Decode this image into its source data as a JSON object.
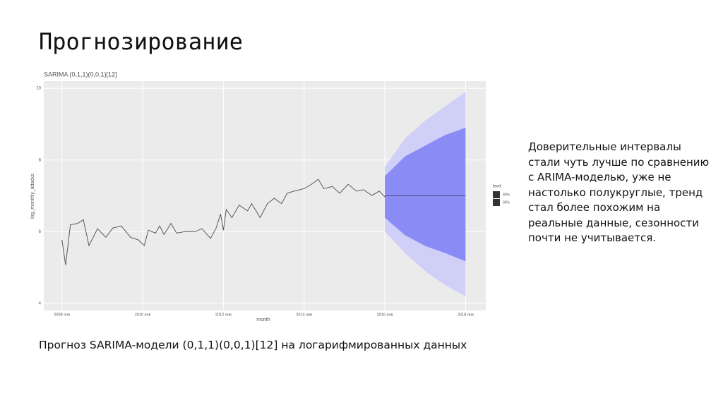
{
  "slide_title": "Прогнозирование",
  "caption": "Прогноз SARIMA-модели (0,1,1)(0,0,1)[12] на логарифмированных данных",
  "description": "Доверительные интервалы стали чуть лучше по сравнению с ARIMA-моделью, уже не настолько полукруглые, тренд стал более похожим на реальные данные, сезонности почти не учитывается.",
  "chart_data": {
    "type": "line",
    "title": "SARIMA (0,1,1)(0,0,1)[12]",
    "x_label": "month",
    "y_label": "log_monthly_attacks",
    "legend_title": "level",
    "xlim": [
      2007.55,
      2018.5
    ],
    "ylim": [
      3.8,
      10.2
    ],
    "xticks": [
      {
        "value": 2008,
        "label": "2008 янв"
      },
      {
        "value": 2010,
        "label": "2010 янв"
      },
      {
        "value": 2012,
        "label": "2012 янв"
      },
      {
        "value": 2014,
        "label": "2014 янв"
      },
      {
        "value": 2016,
        "label": "2016 янв"
      },
      {
        "value": 2018,
        "label": "2018 янв"
      }
    ],
    "yticks": [
      4,
      6,
      8,
      10
    ],
    "grid": true,
    "series": [
      {
        "color": "#595959",
        "x": [
          2008.0,
          2008.09,
          2008.21,
          2008.39,
          2008.53,
          2008.67,
          2008.88,
          2009.09,
          2009.26,
          2009.47,
          2009.7,
          2009.89,
          2010.04,
          2010.14,
          2010.32,
          2010.42,
          2010.53,
          2010.7,
          2010.84,
          2011.05,
          2011.3,
          2011.47,
          2011.68,
          2011.82,
          2011.93,
          2012.0,
          2012.07,
          2012.21,
          2012.39,
          2012.6,
          2012.7,
          2012.91,
          2013.09,
          2013.26,
          2013.44,
          2013.58,
          2013.75,
          2014.0,
          2014.18,
          2014.35,
          2014.49,
          2014.7,
          2014.88,
          2015.09,
          2015.3,
          2015.47,
          2015.68,
          2015.86,
          2016.0,
          2016.19,
          2016.44,
          2016.65,
          2016.89,
          2017.14,
          2017.3,
          2017.47,
          2017.65,
          2017.82,
          2017.96
        ],
        "values": [
          5.77,
          5.07,
          6.19,
          6.23,
          6.33,
          5.61,
          6.08,
          5.84,
          6.1,
          6.16,
          5.84,
          5.77,
          5.61,
          6.04,
          5.96,
          6.16,
          5.92,
          6.23,
          5.96,
          6.0,
          6.0,
          6.08,
          5.81,
          6.1,
          6.49,
          6.04,
          6.62,
          6.39,
          6.74,
          6.58,
          6.78,
          6.39,
          6.78,
          6.93,
          6.78,
          7.07,
          7.13,
          7.2,
          7.32,
          7.46,
          7.2,
          7.26,
          7.07,
          7.32,
          7.13,
          7.17,
          7.01,
          7.13,
          6.97,
          7.07,
          7.2,
          6.97,
          7.03,
          6.87,
          6.78,
          6.93,
          6.82,
          6.74,
          6.62
        ]
      },
      {
        "name": "95%",
        "color": "#cfcff7",
        "x": [
          2016.0,
          2016.5,
          2017.0,
          2017.5,
          2018.0
        ],
        "upper": [
          7.8,
          8.6,
          9.1,
          9.5,
          9.9
        ],
        "lower": [
          6.0,
          5.4,
          4.9,
          4.5,
          4.2
        ]
      },
      {
        "name": "80%",
        "color": "#8b8bf5",
        "x": [
          2016.0,
          2016.5,
          2017.0,
          2017.5,
          2018.0
        ],
        "upper": [
          7.55,
          8.1,
          8.4,
          8.7,
          8.9
        ],
        "lower": [
          6.39,
          5.9,
          5.6,
          5.4,
          5.17
        ]
      },
      {
        "color": "#4a4a8a",
        "x": [
          2016.0,
          2018.0
        ],
        "values": [
          7.0,
          7.0
        ]
      }
    ]
  }
}
